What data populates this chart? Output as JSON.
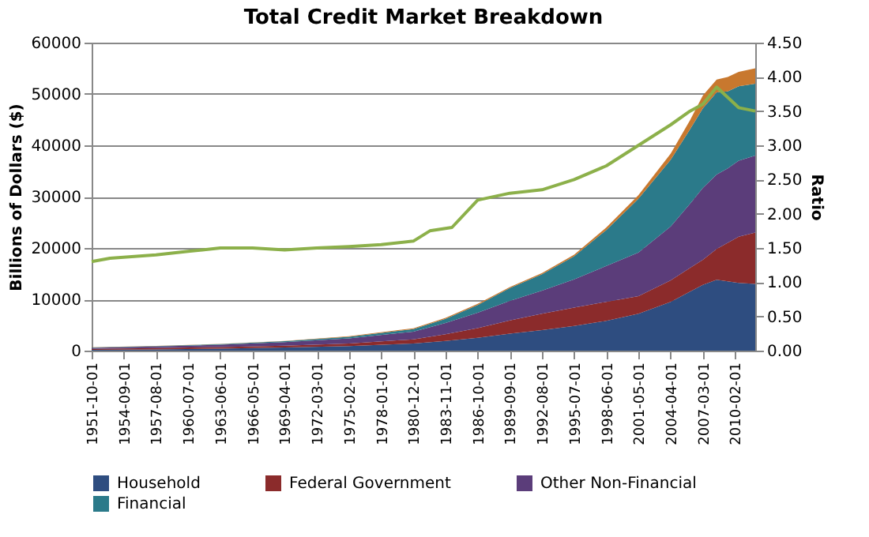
{
  "chart_data": {
    "type": "area",
    "stacked": true,
    "title": "Total Credit Market Breakdown",
    "ylabel": "Billions of Dollars ($)",
    "y2label": "Ratio",
    "x": [
      "1951-10-01",
      "1957-08-01",
      "1963-06-01",
      "1969-04-01",
      "1975-02-01",
      "1980-12-01",
      "1983-11-01",
      "1986-10-01",
      "1989-09-01",
      "1992-08-01",
      "1995-07-01",
      "1998-06-01",
      "2001-05-01",
      "2004-04-01",
      "2006-01-01",
      "2007-03-01",
      "2008-06-01",
      "2009-06-01",
      "2010-06-01",
      "2011-12-01"
    ],
    "series": [
      {
        "name": "Household",
        "color": "#2e4d80",
        "values": [
          150,
          250,
          400,
          600,
          900,
          1400,
          1900,
          2500,
          3300,
          4000,
          4800,
          5800,
          7200,
          9500,
          11500,
          12800,
          13800,
          13500,
          13200,
          13000
        ]
      },
      {
        "name": "Federal Government",
        "color": "#8b2b2b",
        "values": [
          200,
          250,
          300,
          350,
          500,
          800,
          1300,
          1900,
          2600,
          3200,
          3600,
          3700,
          3400,
          4200,
          4600,
          4900,
          6000,
          7500,
          9000,
          10000
        ]
      },
      {
        "name": "Other Non-Financial",
        "color": "#5b3d7a",
        "values": [
          200,
          300,
          450,
          700,
          1000,
          1500,
          2200,
          3000,
          3800,
          4500,
          5500,
          7000,
          8500,
          10500,
          12500,
          14000,
          14500,
          14500,
          14800,
          15000
        ]
      },
      {
        "name": "Financial",
        "color": "#2b7a8a",
        "values": [
          50,
          80,
          120,
          200,
          300,
          500,
          800,
          1500,
          2500,
          3200,
          4500,
          7000,
          10500,
          13000,
          14500,
          15500,
          16000,
          15000,
          14500,
          14000
        ]
      },
      {
        "color": "#c8782e",
        "values": [
          50,
          50,
          50,
          50,
          100,
          150,
          200,
          200,
          200,
          200,
          300,
          500,
          700,
          1200,
          1800,
          2500,
          2500,
          2800,
          2800,
          3000
        ]
      },
      {
        "type": "line",
        "axis": "y2",
        "color": "#8cb04a",
        "x": [
          "1951-10-01",
          "1953-06-01",
          "1957-08-01",
          "1960-07-01",
          "1963-06-01",
          "1966-05-01",
          "1969-04-01",
          "1972-03-01",
          "1975-02-01",
          "1978-01-01",
          "1980-12-01",
          "1982-06-01",
          "1984-06-01",
          "1986-10-01",
          "1989-09-01",
          "1992-08-01",
          "1995-07-01",
          "1998-06-01",
          "2001-05-01",
          "2004-04-01",
          "2006-01-01",
          "2007-03-01",
          "2008-06-01",
          "2009-06-01",
          "2010-06-01",
          "2011-12-01"
        ],
        "values": [
          1.3,
          1.35,
          1.4,
          1.45,
          1.5,
          1.5,
          1.47,
          1.5,
          1.52,
          1.55,
          1.6,
          1.75,
          1.8,
          2.2,
          2.3,
          2.35,
          2.5,
          2.7,
          3.0,
          3.3,
          3.5,
          3.6,
          3.85,
          3.7,
          3.55,
          3.5
        ]
      }
    ],
    "xlim": [
      "1951-10-01",
      "2011-12-01"
    ],
    "xticks": [
      "1951-10-01",
      "1954-09-01",
      "1957-08-01",
      "1960-07-01",
      "1963-06-01",
      "1966-05-01",
      "1969-04-01",
      "1972-03-01",
      "1975-02-01",
      "1978-01-01",
      "1980-12-01",
      "1983-11-01",
      "1986-10-01",
      "1989-09-01",
      "1992-08-01",
      "1995-07-01",
      "1998-06-01",
      "2001-05-01",
      "2004-04-01",
      "2007-03-01",
      "2010-02-01"
    ],
    "ylim": [
      0,
      60000
    ],
    "yticks": [
      0,
      10000,
      20000,
      30000,
      40000,
      50000,
      60000
    ],
    "y2lim": [
      0,
      4.5
    ],
    "y2ticks": [
      {
        "value": 0,
        "label": "0.00"
      },
      {
        "value": 0.5,
        "label": "0.50"
      },
      {
        "value": 1,
        "label": "1.00"
      },
      {
        "value": 1.5,
        "label": "1.50"
      },
      {
        "value": 2,
        "label": "2.00"
      },
      {
        "value": 2.5,
        "label": "2.50"
      },
      {
        "value": 3,
        "label": "3.00"
      },
      {
        "value": 3.5,
        "label": "3.50"
      },
      {
        "value": 4,
        "label": "4.00"
      },
      {
        "value": 4.5,
        "label": "4.50"
      }
    ],
    "grid": "y",
    "legend": "bottom"
  }
}
